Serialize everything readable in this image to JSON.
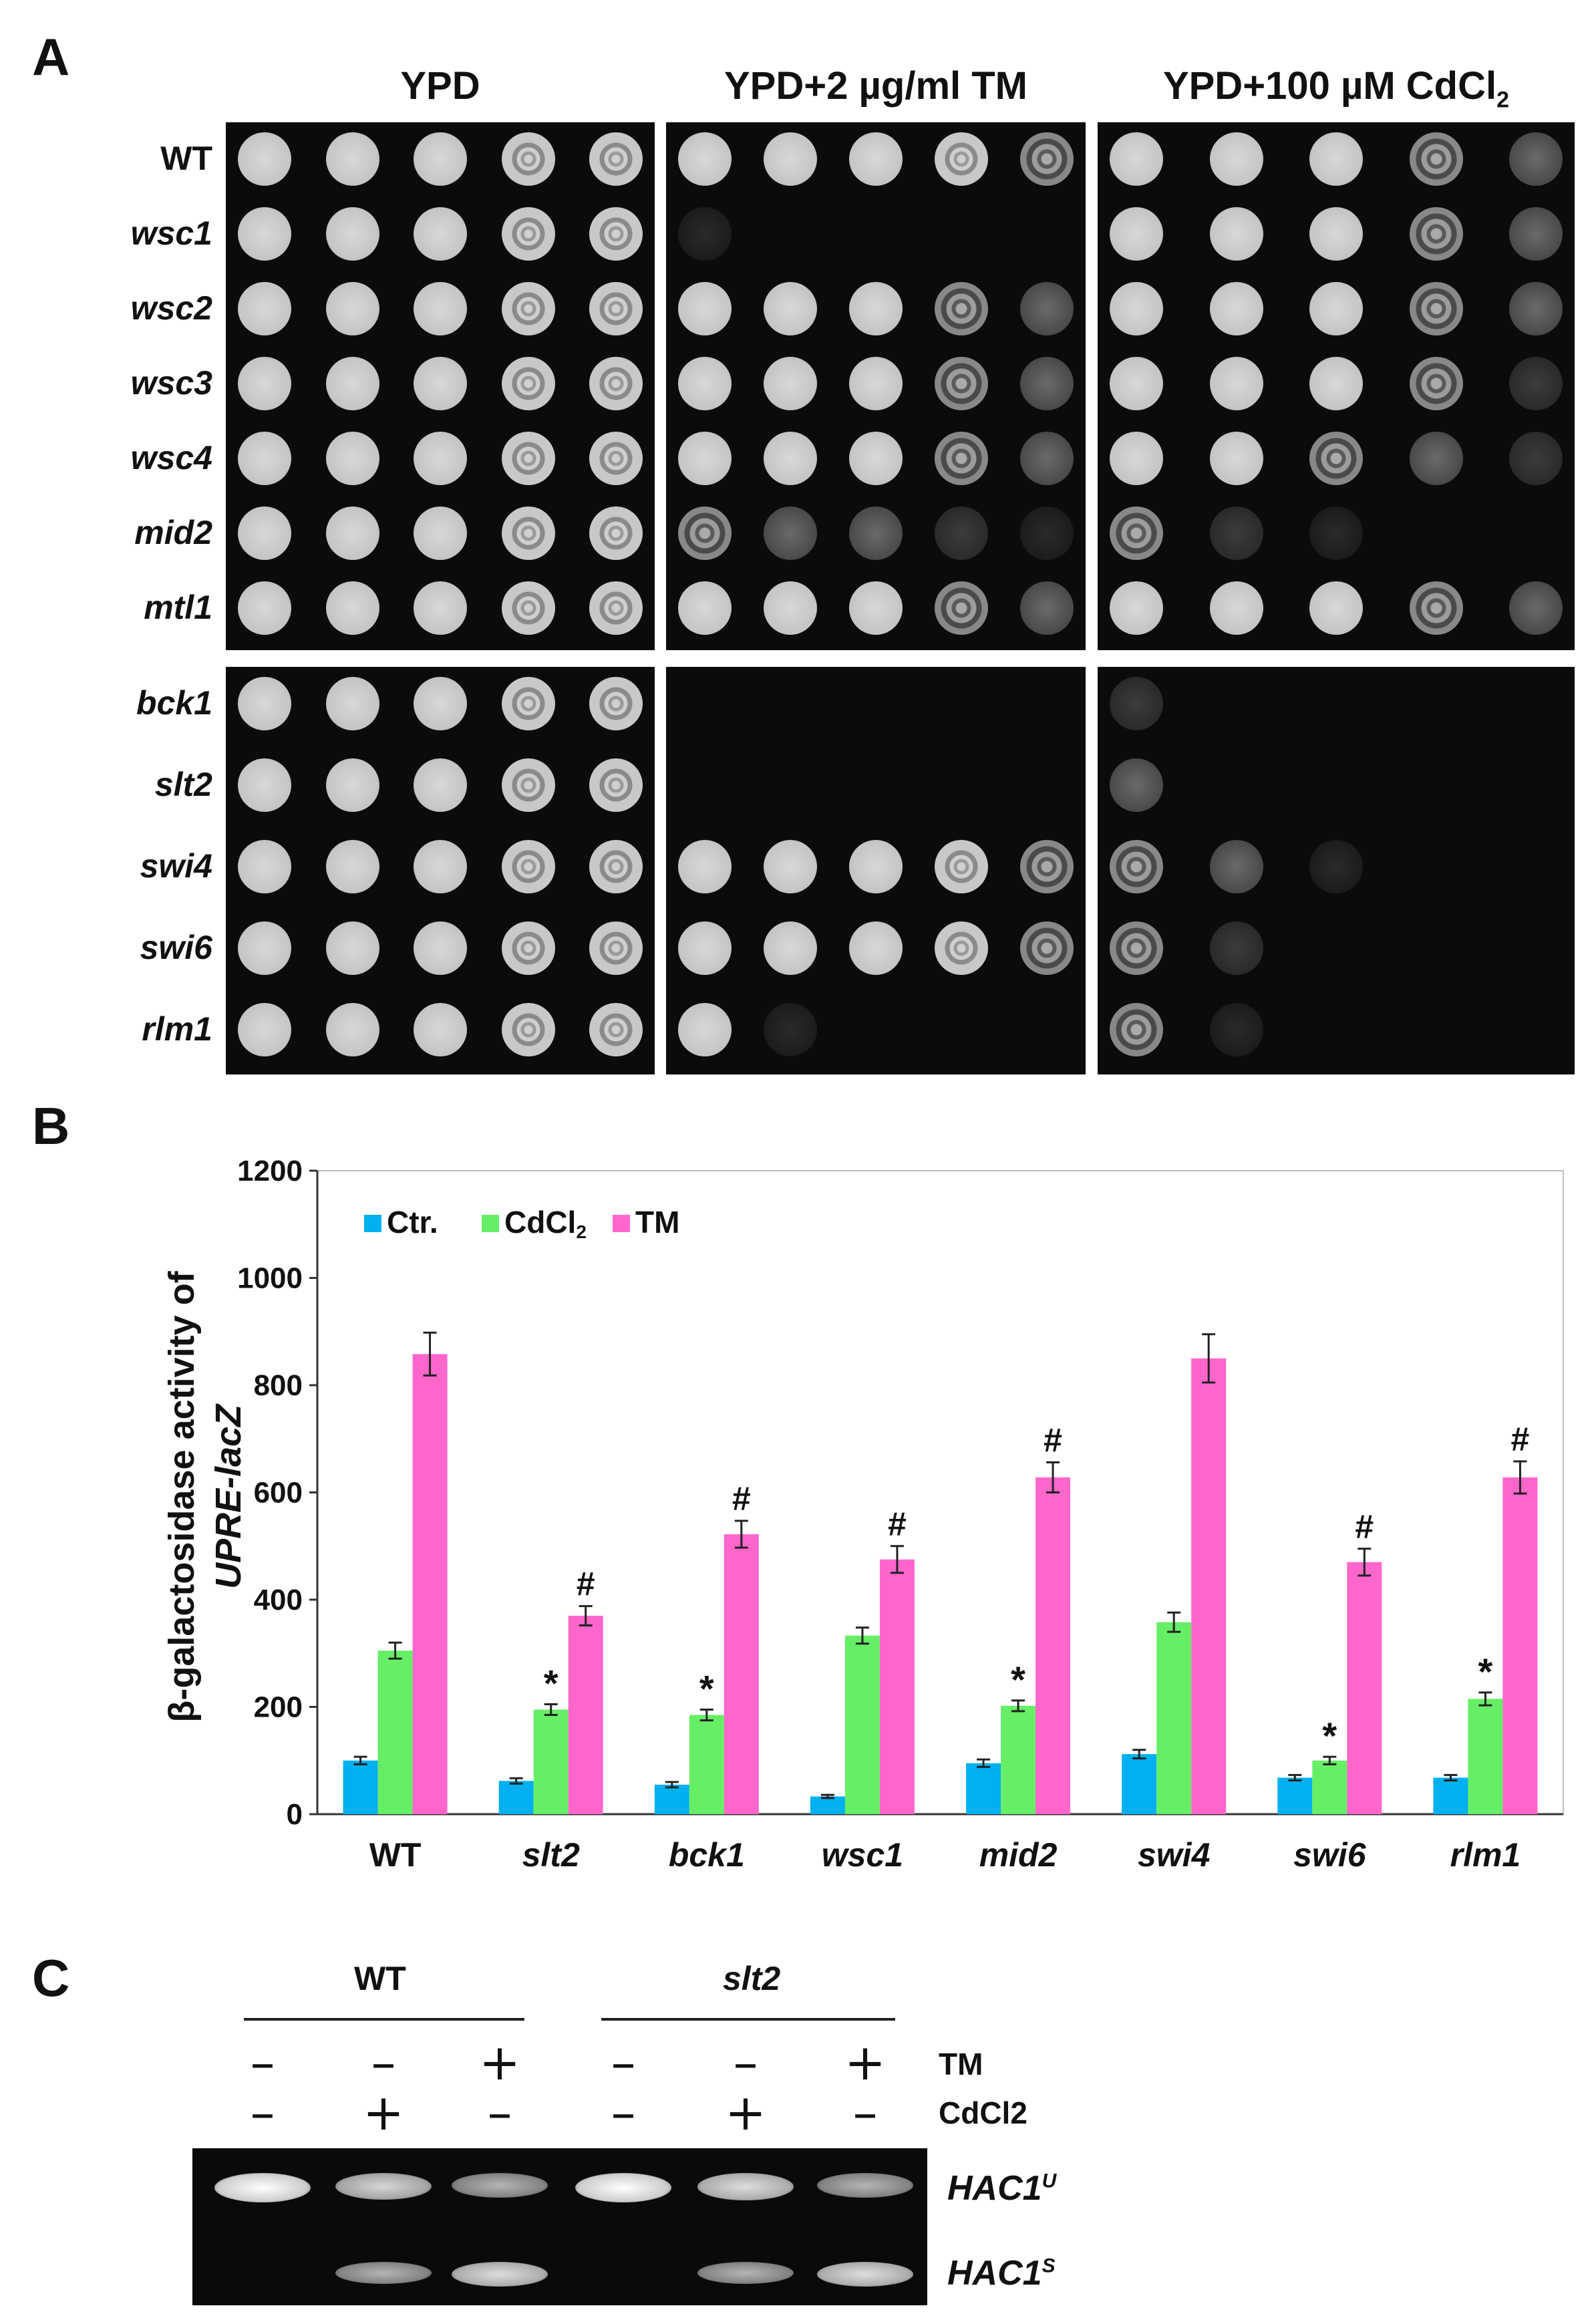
{
  "panels": {
    "a": {
      "letter": "A",
      "conditions": [
        {
          "label": "YPD",
          "sub": ""
        },
        {
          "label": "YPD+2 µg/ml TM",
          "sub": ""
        },
        {
          "label": "YPD+100 µM CdCl",
          "sub": "2"
        }
      ],
      "group1": [
        {
          "strain": "WT",
          "growth": [
            [
              5,
              5,
              5,
              5,
              5
            ],
            [
              5,
              5,
              5,
              5,
              4
            ],
            [
              5,
              5,
              5,
              4,
              3
            ]
          ]
        },
        {
          "strain": "wsc1",
          "growth": [
            [
              5,
              5,
              5,
              5,
              5
            ],
            [
              1,
              0,
              0,
              0,
              0
            ],
            [
              5,
              5,
              5,
              4,
              3
            ]
          ]
        },
        {
          "strain": "wsc2",
          "growth": [
            [
              5,
              5,
              5,
              5,
              5
            ],
            [
              5,
              5,
              5,
              4,
              3
            ],
            [
              5,
              5,
              5,
              4,
              3
            ]
          ]
        },
        {
          "strain": "wsc3",
          "growth": [
            [
              5,
              5,
              5,
              5,
              5
            ],
            [
              5,
              5,
              5,
              4,
              3
            ],
            [
              5,
              5,
              5,
              4,
              2
            ]
          ]
        },
        {
          "strain": "wsc4",
          "growth": [
            [
              5,
              5,
              5,
              5,
              5
            ],
            [
              5,
              5,
              5,
              4,
              3
            ],
            [
              5,
              5,
              4,
              3,
              2
            ]
          ]
        },
        {
          "strain": "mid2",
          "growth": [
            [
              5,
              5,
              5,
              5,
              5
            ],
            [
              4,
              3,
              3,
              2,
              1
            ],
            [
              4,
              2,
              1,
              0,
              0
            ]
          ]
        },
        {
          "strain": "mtl1",
          "growth": [
            [
              5,
              5,
              5,
              5,
              5
            ],
            [
              5,
              5,
              5,
              4,
              3
            ],
            [
              5,
              5,
              5,
              4,
              3
            ]
          ]
        }
      ],
      "group2": [
        {
          "strain": "bck1",
          "growth": [
            [
              5,
              5,
              5,
              5,
              5
            ],
            [
              0,
              0,
              0,
              0,
              0
            ],
            [
              2,
              0,
              0,
              0,
              0
            ]
          ]
        },
        {
          "strain": "slt2",
          "growth": [
            [
              5,
              5,
              5,
              5,
              5
            ],
            [
              0,
              0,
              0,
              0,
              0
            ],
            [
              3,
              0,
              0,
              0,
              0
            ]
          ]
        },
        {
          "strain": "swi4",
          "growth": [
            [
              5,
              5,
              5,
              5,
              5
            ],
            [
              5,
              5,
              5,
              5,
              4
            ],
            [
              4,
              3,
              1,
              0,
              0
            ]
          ]
        },
        {
          "strain": "swi6",
          "growth": [
            [
              5,
              5,
              5,
              5,
              5
            ],
            [
              5,
              5,
              5,
              5,
              4
            ],
            [
              4,
              2,
              0,
              0,
              0
            ]
          ]
        },
        {
          "strain": "rlm1",
          "growth": [
            [
              5,
              5,
              5,
              5,
              5
            ],
            [
              5,
              1,
              0,
              0,
              0
            ],
            [
              4,
              1,
              0,
              0,
              0
            ]
          ]
        }
      ]
    },
    "b": {
      "letter": "B"
    },
    "c": {
      "letter": "C",
      "groups": [
        "WT",
        "slt2"
      ],
      "tm_label": "TM",
      "cd_label": "CdCl2",
      "tm_signs": [
        "–",
        "–",
        "+",
        "–",
        "–",
        "+"
      ],
      "cd_signs": [
        "–",
        "+",
        "–",
        "–",
        "+",
        "–"
      ],
      "bands_upper": [
        1.0,
        0.75,
        0.55,
        1.0,
        0.8,
        0.55
      ],
      "bands_lower": [
        0.0,
        0.55,
        0.8,
        0.0,
        0.55,
        0.8
      ],
      "band_labels": [
        {
          "name": "HAC1",
          "sup": "U"
        },
        {
          "name": "HAC1",
          "sup": "S"
        }
      ]
    }
  },
  "chart_data": {
    "type": "bar",
    "title": "",
    "ylabel_line1": "β-galactosidase activity of",
    "ylabel_line2": "UPRE-lacZ",
    "xlabel": "",
    "ylim": [
      0,
      1200
    ],
    "yticks": [
      "0",
      "200",
      "400",
      "600",
      "800",
      "1000",
      "1200"
    ],
    "categories": [
      "WT",
      "slt2",
      "bck1",
      "wsc1",
      "mid2",
      "swi4",
      "swi6",
      "rlm1"
    ],
    "series": [
      {
        "name": "Ctr.",
        "color": "#00b0f0",
        "values": [
          100,
          62,
          55,
          33,
          95,
          112,
          68,
          68
        ],
        "errors": [
          7,
          5,
          5,
          3,
          7,
          8,
          5,
          5
        ]
      },
      {
        "name": "CdCl",
        "name_sub": "2",
        "color": "#66ee66",
        "values": [
          305,
          195,
          185,
          333,
          202,
          358,
          100,
          215
        ],
        "errors": [
          15,
          10,
          10,
          15,
          10,
          18,
          7,
          12
        ]
      },
      {
        "name": "TM",
        "color": "#ff66cc",
        "values": [
          858,
          370,
          522,
          475,
          628,
          850,
          470,
          628
        ],
        "errors": [
          40,
          18,
          25,
          25,
          28,
          45,
          25,
          30
        ]
      }
    ],
    "annotations": {
      "cd_star": [
        "",
        "*",
        "*",
        "",
        "*",
        "",
        "*",
        "*"
      ],
      "tm_hash": [
        "",
        "#",
        "#",
        "#",
        "#",
        "",
        "#",
        "#"
      ]
    },
    "legend_position": "top-left",
    "grid": false
  }
}
